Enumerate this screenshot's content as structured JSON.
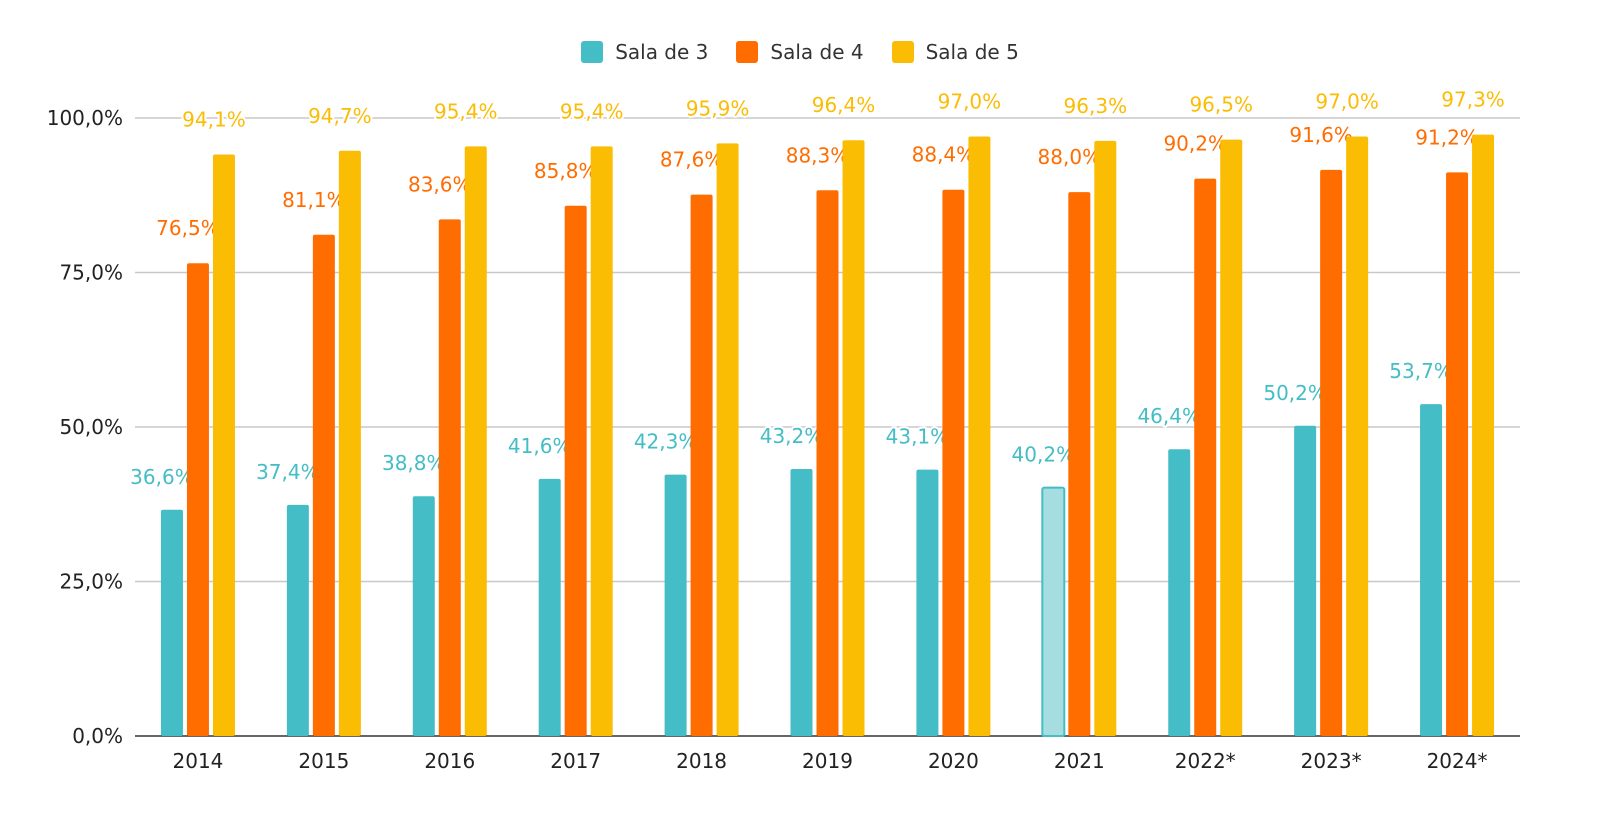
{
  "chart_data": {
    "type": "bar",
    "categories": [
      "2014",
      "2015",
      "2016",
      "2017",
      "2018",
      "2019",
      "2020",
      "2021",
      "2022*",
      "2023*",
      "2024*"
    ],
    "series": [
      {
        "name": "Sala de 3",
        "color": "#45BDC6",
        "values": [
          36.6,
          37.4,
          38.8,
          41.6,
          42.3,
          43.2,
          43.1,
          40.2,
          46.4,
          50.2,
          53.7
        ],
        "labels": [
          "36,6%",
          "37,4%",
          "38,8%",
          "41,6%",
          "42,3%",
          "43,2%",
          "43,1%",
          "40,2%",
          "46,4%",
          "50,2%",
          "53,7%"
        ],
        "highlight_index": 7,
        "highlight_color": "#A5DDE1"
      },
      {
        "name": "Sala de 4",
        "color": "#FF6D01",
        "values": [
          76.5,
          81.1,
          83.6,
          85.8,
          87.6,
          88.3,
          88.4,
          88.0,
          90.2,
          91.6,
          91.2
        ],
        "labels": [
          "76,5%",
          "81,1%",
          "83,6%",
          "85,8%",
          "87,6%",
          "88,3%",
          "88,4%",
          "88,0%",
          "90,2%",
          "91,6%",
          "91,2%"
        ]
      },
      {
        "name": "Sala de 5",
        "color": "#FBBC04",
        "values": [
          94.1,
          94.7,
          95.4,
          95.4,
          95.9,
          96.4,
          97.0,
          96.3,
          96.5,
          97.0,
          97.3
        ],
        "labels": [
          "94,1%",
          "94,7%",
          "95,4%",
          "95,4%",
          "95,9%",
          "96,4%",
          "97,0%",
          "96,3%",
          "96,5%",
          "97,0%",
          "97,3%"
        ]
      }
    ],
    "yticks": [
      0,
      25,
      50,
      75,
      100
    ],
    "ytick_labels": [
      "0,0%",
      "25,0%",
      "50,0%",
      "75,0%",
      "100,0%"
    ],
    "ylim": [
      0,
      100
    ],
    "grid": true,
    "legend_position": "top-center"
  }
}
